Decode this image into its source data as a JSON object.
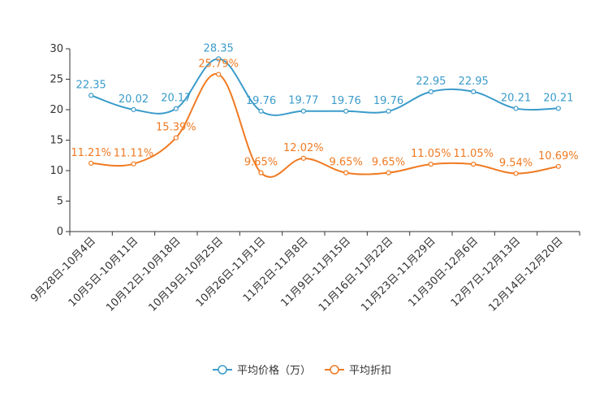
{
  "chart_data": {
    "type": "line",
    "title": "",
    "xlabel": "",
    "ylabel": "",
    "ylim": [
      0,
      30
    ],
    "yticks": [
      0,
      5,
      10,
      15,
      20,
      25,
      30
    ],
    "categories": [
      "9月28日-10月4日",
      "10月5日-10月11日",
      "10月12日-10月18日",
      "10月19日-10月25日",
      "10月26日-11月1日",
      "11月2日-11月8日",
      "11月9日-11月15日",
      "11月16日-11月22日",
      "11月23日-11月29日",
      "11月30日-12月6日",
      "12月7日-12月13日",
      "12月14日-12月20日"
    ],
    "series": [
      {
        "name": "平均价格（万）",
        "color": "#3a9bca",
        "values": [
          22.35,
          20.02,
          20.17,
          28.35,
          19.76,
          19.77,
          19.76,
          19.76,
          22.95,
          22.95,
          20.21,
          20.21
        ],
        "labels": [
          "22.35",
          "20.02",
          "20.17",
          "28.35",
          "19.76",
          "19.77",
          "19.76",
          "19.76",
          "22.95",
          "22.95",
          "20.21",
          "20.21"
        ]
      },
      {
        "name": "平均折扣",
        "color": "#f07a22",
        "values": [
          11.21,
          11.11,
          15.39,
          25.79,
          9.65,
          12.02,
          9.65,
          9.65,
          11.05,
          11.05,
          9.54,
          10.69
        ],
        "labels": [
          "11.21%",
          "11.11%",
          "15.39%",
          "25.79%",
          "9.65%",
          "12.02%",
          "9.65%",
          "9.65%",
          "11.05%",
          "11.05%",
          "9.54%",
          "10.69%"
        ]
      }
    ],
    "legend_position": "bottom-center",
    "grid": false
  }
}
